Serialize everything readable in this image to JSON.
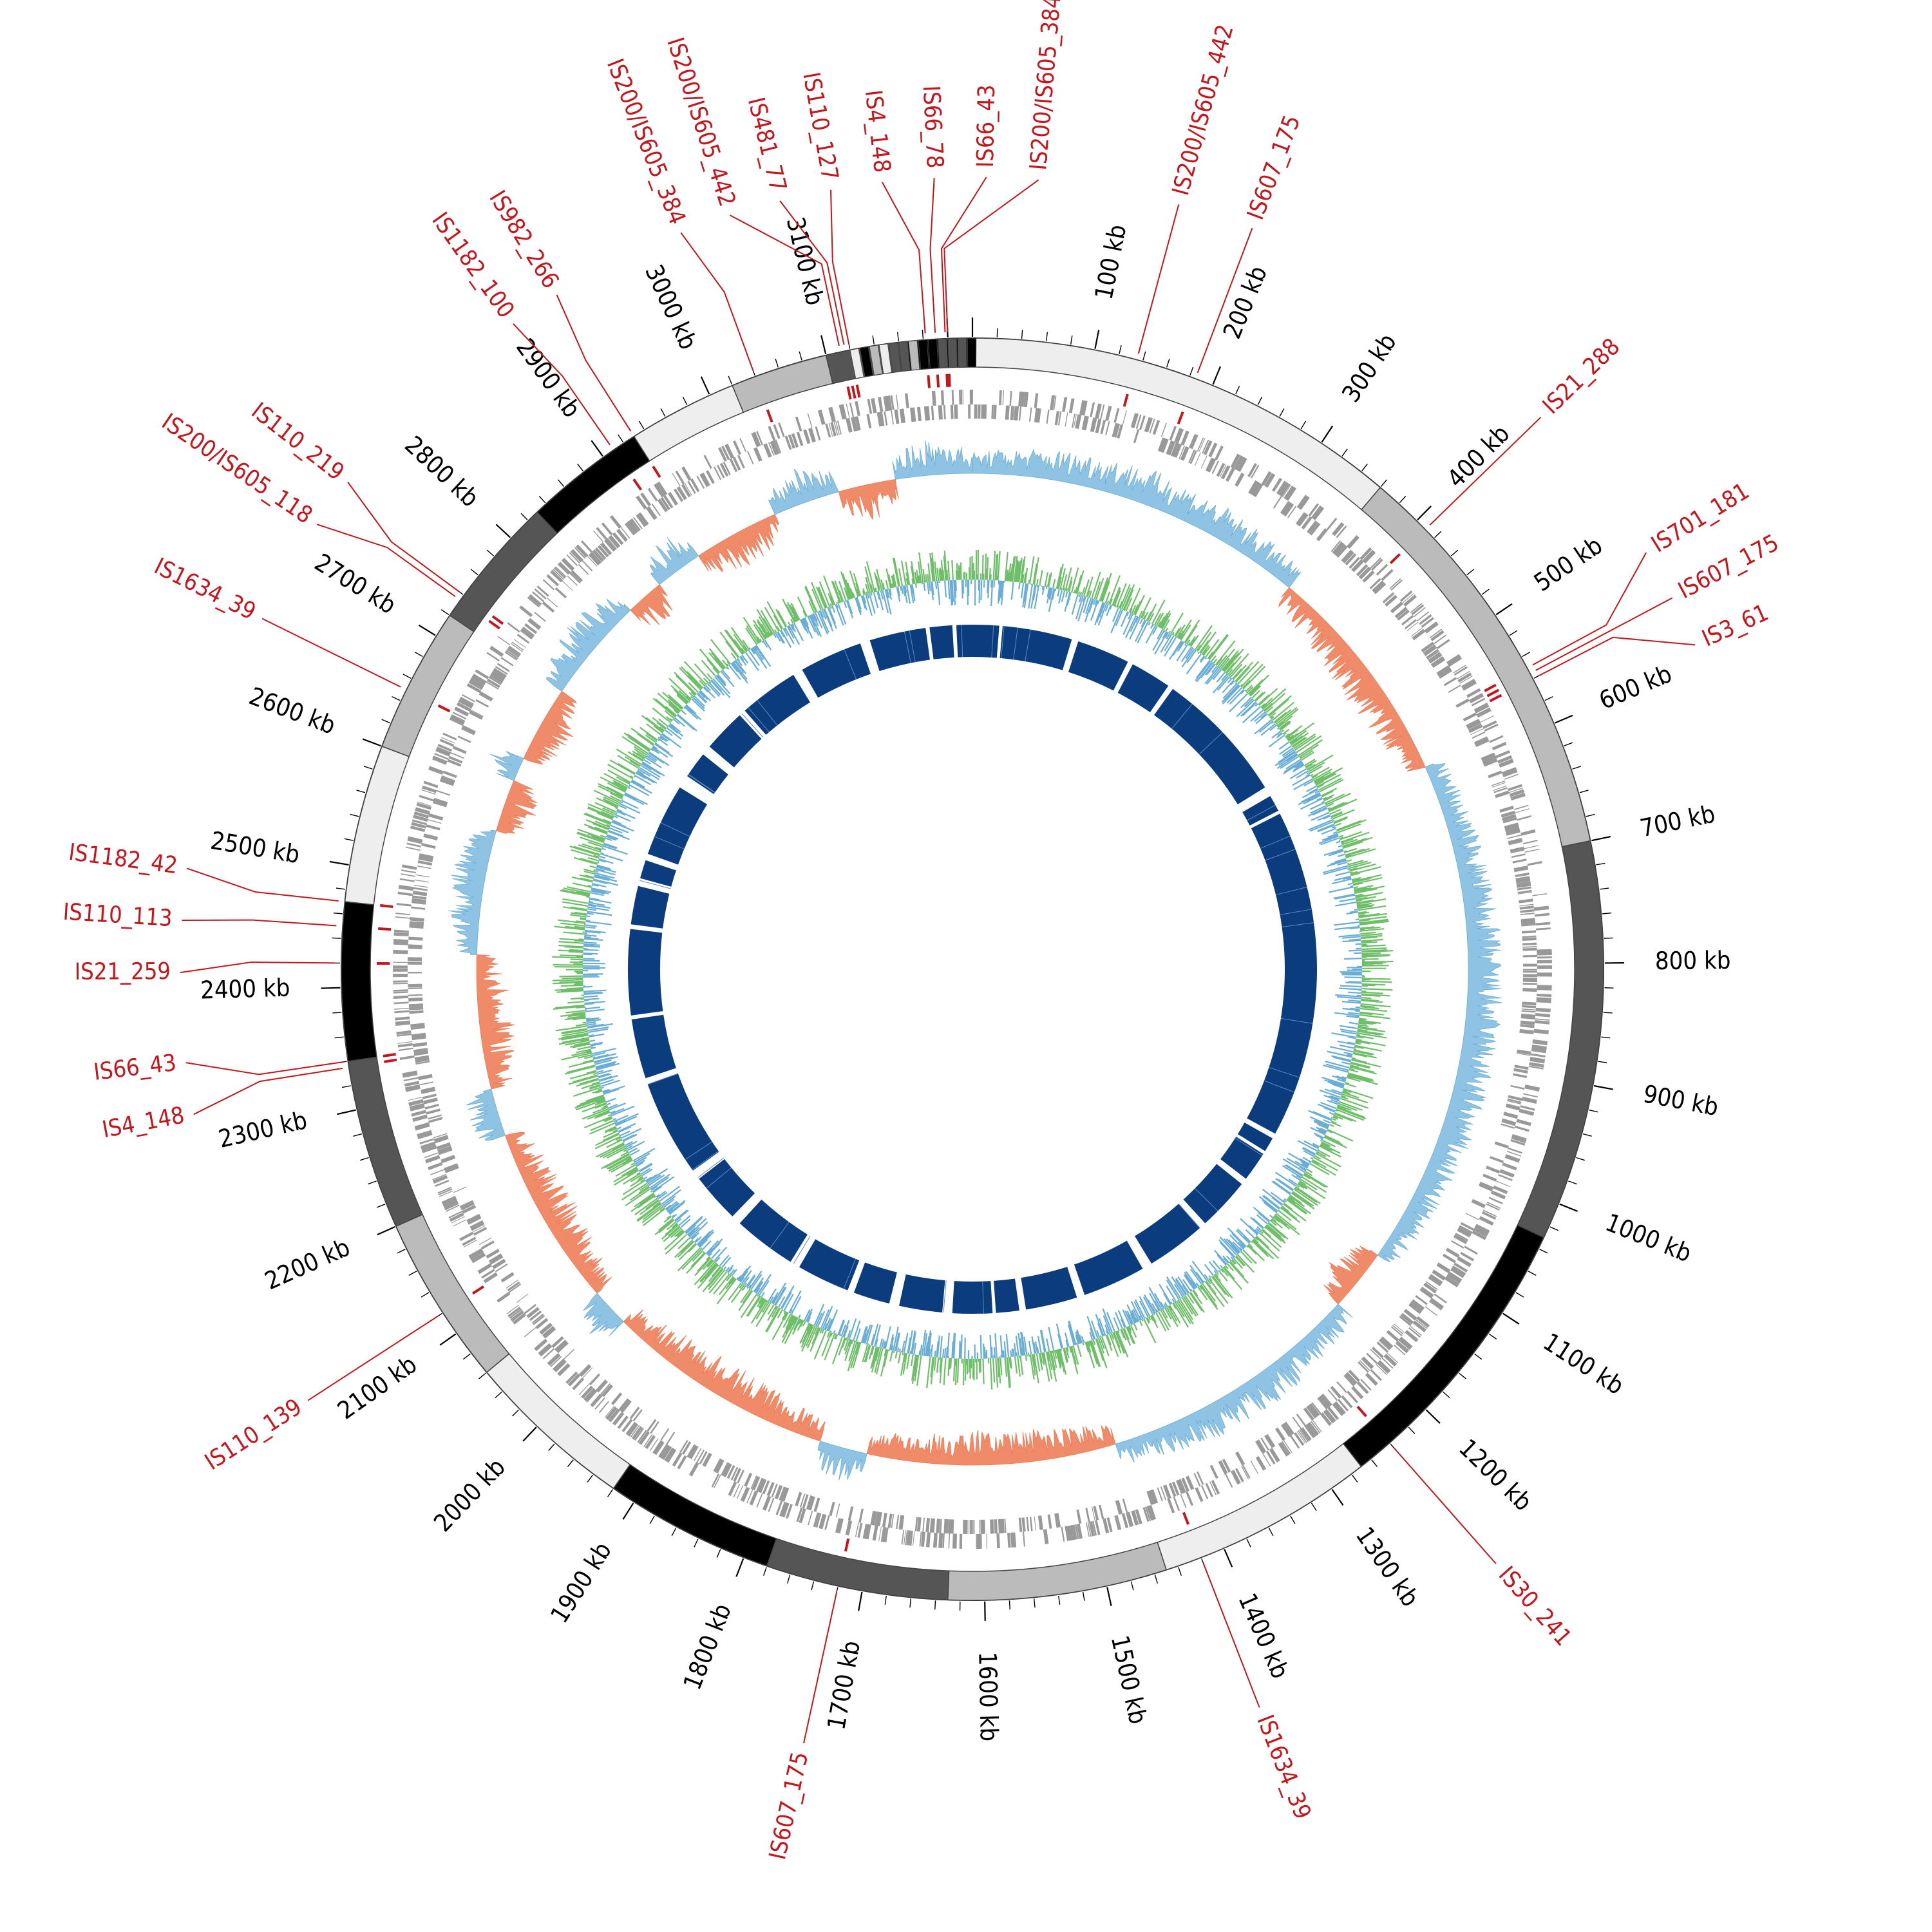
{
  "chart_data": {
    "type": "circular-genome-map",
    "genome_length_kb": 3220,
    "scale_labels": [
      {
        "kb": 100,
        "label": "100 kb"
      },
      {
        "kb": 200,
        "label": "200 kb"
      },
      {
        "kb": 300,
        "label": "300 kb"
      },
      {
        "kb": 400,
        "label": "400 kb"
      },
      {
        "kb": 500,
        "label": "500 kb"
      },
      {
        "kb": 600,
        "label": "600 kb"
      },
      {
        "kb": 700,
        "label": "700 kb"
      },
      {
        "kb": 800,
        "label": "800 kb"
      },
      {
        "kb": 900,
        "label": "900 kb"
      },
      {
        "kb": 1000,
        "label": "1000 kb"
      },
      {
        "kb": 1100,
        "label": "1100 kb"
      },
      {
        "kb": 1200,
        "label": "1200 kb"
      },
      {
        "kb": 1300,
        "label": "1300 kb"
      },
      {
        "kb": 1400,
        "label": "1400 kb"
      },
      {
        "kb": 1500,
        "label": "1500 kb"
      },
      {
        "kb": 1600,
        "label": "1600 kb"
      },
      {
        "kb": 1700,
        "label": "1700 kb"
      },
      {
        "kb": 1800,
        "label": "1800 kb"
      },
      {
        "kb": 1900,
        "label": "1900 kb"
      },
      {
        "kb": 2000,
        "label": "2000 kb"
      },
      {
        "kb": 2100,
        "label": "2100 kb"
      },
      {
        "kb": 2200,
        "label": "2200 kb"
      },
      {
        "kb": 2300,
        "label": "2300 kb"
      },
      {
        "kb": 2400,
        "label": "2400 kb"
      },
      {
        "kb": 2500,
        "label": "2500 kb"
      },
      {
        "kb": 2600,
        "label": "2600 kb"
      },
      {
        "kb": 2700,
        "label": "2700 kb"
      },
      {
        "kb": 2800,
        "label": "2800 kb"
      },
      {
        "kb": 2900,
        "label": "2900 kb"
      },
      {
        "kb": 3000,
        "label": "3000 kb"
      },
      {
        "kb": 3100,
        "label": "3100 kb"
      }
    ],
    "contigs": [
      {
        "start": 0,
        "end": 360,
        "shade": "#eeeeee"
      },
      {
        "start": 360,
        "end": 700,
        "shade": "#bbbbbb"
      },
      {
        "start": 700,
        "end": 1030,
        "shade": "#555555"
      },
      {
        "start": 1030,
        "end": 1270,
        "shade": "#000000"
      },
      {
        "start": 1270,
        "end": 1450,
        "shade": "#eeeeee"
      },
      {
        "start": 1450,
        "end": 1630,
        "shade": "#bbbbbb"
      },
      {
        "start": 1630,
        "end": 1780,
        "shade": "#555555"
      },
      {
        "start": 1780,
        "end": 1920,
        "shade": "#000000"
      },
      {
        "start": 1920,
        "end": 2060,
        "shade": "#eeeeee"
      },
      {
        "start": 2060,
        "end": 2200,
        "shade": "#bbbbbb"
      },
      {
        "start": 2200,
        "end": 2340,
        "shade": "#555555"
      },
      {
        "start": 2340,
        "end": 2470,
        "shade": "#000000"
      },
      {
        "start": 2470,
        "end": 2600,
        "shade": "#eeeeee"
      },
      {
        "start": 2600,
        "end": 2720,
        "shade": "#bbbbbb"
      },
      {
        "start": 2720,
        "end": 2830,
        "shade": "#555555"
      },
      {
        "start": 2830,
        "end": 2930,
        "shade": "#000000"
      },
      {
        "start": 2930,
        "end": 3020,
        "shade": "#eeeeee"
      },
      {
        "start": 3020,
        "end": 3100,
        "shade": "#bbbbbb"
      },
      {
        "start": 3100,
        "end": 3160,
        "shade": "#555555"
      },
      {
        "start": 3160,
        "end": 3220,
        "shade": "#000000"
      }
    ],
    "is_elements": [
      {
        "kb": 3200,
        "label": "IS200/IS605_384"
      },
      {
        "kb": 3198,
        "label": "IS66_43"
      },
      {
        "kb": 3190,
        "label": "IS66_78"
      },
      {
        "kb": 3182,
        "label": "IS4_148"
      },
      {
        "kb": 3120,
        "label": "IS110_127"
      },
      {
        "kb": 3116,
        "label": "IS481_77"
      },
      {
        "kb": 3112,
        "label": "IS200/IS605_442"
      },
      {
        "kb": 3040,
        "label": "IS200/IS605_384"
      },
      {
        "kb": 2930,
        "label": "IS982_266"
      },
      {
        "kb": 2910,
        "label": "IS1182_100"
      },
      {
        "kb": 2740,
        "label": "IS110_219"
      },
      {
        "kb": 2735,
        "label": "IS200/IS605_118"
      },
      {
        "kb": 2650,
        "label": "IS1634_39"
      },
      {
        "kb": 2470,
        "label": "IS1182_42"
      },
      {
        "kb": 2450,
        "label": "IS110_113"
      },
      {
        "kb": 2420,
        "label": "IS21_259"
      },
      {
        "kb": 2340,
        "label": "IS66_43"
      },
      {
        "kb": 2335,
        "label": "IS4_148"
      },
      {
        "kb": 2120,
        "label": "IS110_139"
      },
      {
        "kb": 1720,
        "label": "IS607_175"
      },
      {
        "kb": 1420,
        "label": "IS1634_39"
      },
      {
        "kb": 1240,
        "label": "IS30_241"
      },
      {
        "kb": 560,
        "label": "IS3_61"
      },
      {
        "kb": 555,
        "label": "IS607_175"
      },
      {
        "kb": 550,
        "label": "IS701_181"
      },
      {
        "kb": 410,
        "label": "IS21_288"
      },
      {
        "kb": 185,
        "label": "IS607_175"
      },
      {
        "kb": 135,
        "label": "IS200/IS605_442"
      }
    ],
    "tracks": {
      "outer_ring_colors": {
        "light": "#eeeeee",
        "mid": "#bbbbbb",
        "dark": "#555555",
        "black": "#000000"
      },
      "is_color": "#c4161c",
      "gene_color": "#999999",
      "skew_positive_color": "#8fc3e4",
      "skew_negative_color": "#f08b6a",
      "gc_high_color": "#6fbf6a",
      "gc_low_color": "#6aaed6",
      "core_genome_color": "#0b3d7e"
    }
  }
}
